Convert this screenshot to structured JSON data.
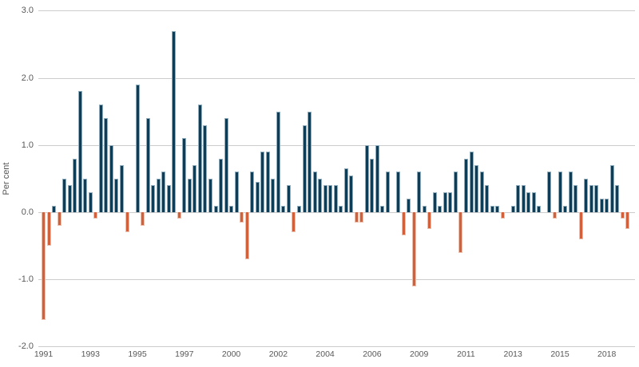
{
  "chart_data": {
    "type": "bar",
    "title": "",
    "ylabel": "Per cent",
    "xlabel": "",
    "ylim": [
      -2.0,
      3.0
    ],
    "y_ticks": [
      "3.0",
      "2.0",
      "1.0",
      "0.0",
      "-1.0",
      "-2.0"
    ],
    "grid": "horizontal",
    "legend": "none",
    "frequency": "quarterly",
    "x_tick_every": 9,
    "x_tick_labels": [
      "1991",
      "1993",
      "1995",
      "1997",
      "2000",
      "2002",
      "2004",
      "2006",
      "2009",
      "2011",
      "2013",
      "2015",
      "2018"
    ],
    "start_period": "1991 Q1",
    "end_period": "2019 Q1",
    "colors": {
      "positive_bar": "#0e3d57",
      "negative_bar": "#d2603a",
      "gridline": "#cccccc",
      "axis_text": "#595959"
    },
    "values": [
      -1.6,
      -0.5,
      0.1,
      -0.2,
      0.5,
      0.4,
      0.8,
      1.8,
      0.5,
      0.3,
      -0.1,
      1.6,
      1.4,
      1.0,
      0.5,
      0.7,
      -0.3,
      0.0,
      1.9,
      -0.2,
      1.4,
      0.4,
      0.5,
      0.6,
      0.4,
      2.7,
      -0.1,
      1.1,
      0.5,
      0.7,
      1.6,
      1.3,
      0.5,
      0.1,
      0.8,
      1.4,
      0.1,
      0.6,
      -0.15,
      -0.7,
      0.6,
      0.45,
      0.9,
      0.9,
      0.5,
      1.5,
      0.1,
      0.4,
      -0.3,
      0.1,
      1.3,
      1.5,
      0.6,
      0.5,
      0.4,
      0.4,
      0.4,
      0.1,
      0.65,
      0.55,
      -0.15,
      -0.15,
      1.0,
      0.8,
      1.0,
      0.1,
      0.6,
      0.0,
      0.6,
      -0.35,
      0.2,
      -1.1,
      0.6,
      0.1,
      -0.25,
      0.3,
      0.1,
      0.3,
      0.3,
      0.6,
      -0.6,
      0.8,
      0.9,
      0.7,
      0.6,
      0.4,
      0.1,
      0.1,
      -0.1,
      0.0,
      0.1,
      0.4,
      0.4,
      0.3,
      0.3,
      0.1,
      0.0,
      0.6,
      -0.1,
      0.6,
      0.1,
      0.6,
      0.4,
      -0.4,
      0.5,
      0.4,
      0.4,
      0.2,
      0.2,
      0.7,
      0.4,
      -0.1,
      -0.25
    ]
  }
}
